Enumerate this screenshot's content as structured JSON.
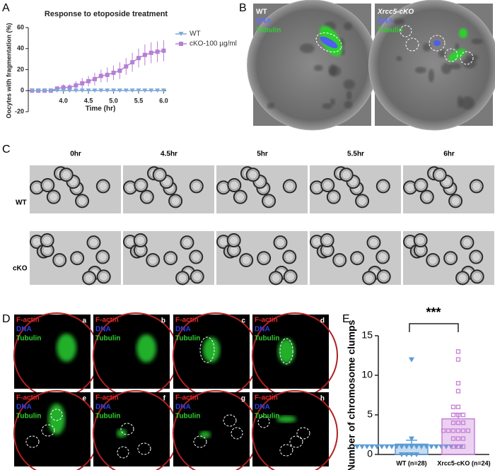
{
  "panel_labels": [
    "A",
    "B",
    "C",
    "D",
    "E"
  ],
  "chart_data": [
    {
      "type": "line",
      "title": "Response to etoposide treatment",
      "xlabel": "Time (hr)",
      "ylabel": "Oocytes with fragmentation (%)",
      "x": [
        3.375,
        3.5,
        3.625,
        3.75,
        3.875,
        4.0,
        4.125,
        4.25,
        4.375,
        4.5,
        4.625,
        4.75,
        4.875,
        5.0,
        5.125,
        5.25,
        5.375,
        5.5,
        5.625,
        5.75,
        5.875,
        6.0
      ],
      "series": [
        {
          "name": "WT",
          "color": "#7fa9d8",
          "marker": "triangle",
          "values": [
            0,
            0,
            0,
            0,
            0,
            0,
            0,
            0,
            0,
            0,
            0,
            0,
            0,
            0,
            0,
            0,
            0,
            0,
            0,
            0,
            0,
            0
          ]
        },
        {
          "name": "cKO-100 µg/ml",
          "color": "#b77fd4",
          "marker": "square",
          "values": [
            0,
            0,
            0,
            0,
            2,
            3,
            3,
            5,
            7,
            9,
            11,
            14,
            15,
            17,
            19,
            23,
            27,
            31,
            34,
            36,
            37,
            38
          ],
          "errors": [
            0,
            0,
            0,
            0,
            2,
            3,
            3,
            4,
            5,
            5,
            6,
            6,
            7,
            7,
            8,
            8,
            9,
            9,
            10,
            10,
            10,
            10
          ]
        }
      ],
      "xlim": [
        3.3,
        6.05
      ],
      "xticks": [
        {
          "value": 4,
          "label": "4.0"
        },
        4.5,
        {
          "value": 5,
          "label": "5.0"
        },
        5.5,
        {
          "value": 6,
          "label": "6.0"
        }
      ],
      "ylim": [
        -20,
        60
      ],
      "yticks": [
        -20,
        0,
        20,
        40,
        60
      ],
      "legend": "right"
    },
    {
      "type": "bar",
      "ylabel": "Number of chromosome clumps",
      "categories": [
        "WT (n=28)",
        "Xrcc5-cKO (n=24)"
      ],
      "values": [
        1.3,
        4.5
      ],
      "errors": [
        0.5,
        0.7
      ],
      "colors": [
        "#5b9bd5",
        "#c77fd8"
      ],
      "points": [
        [
          12,
          2,
          1,
          1,
          1,
          1,
          1,
          1,
          1,
          1,
          1,
          1,
          1,
          1,
          1,
          1,
          1,
          1,
          1,
          1,
          1,
          1,
          1,
          1,
          0,
          0,
          0,
          0
        ],
        [
          13,
          12,
          9,
          8,
          6,
          6,
          5,
          5,
          5,
          4,
          4,
          4,
          3,
          3,
          3,
          3,
          3,
          3,
          2,
          2,
          2,
          1,
          1,
          1
        ]
      ],
      "significance": "***",
      "ylim": [
        0,
        15
      ],
      "yticks": [
        0,
        5,
        10,
        15
      ]
    }
  ],
  "panel_b": {
    "images": [
      "WT",
      "Xrcc5-cKO"
    ],
    "channels": [
      "DNA",
      "Tubulin"
    ]
  },
  "panel_c": {
    "times": [
      "0hr",
      "4.5hr",
      "5hr",
      "5.5hr",
      "6hr"
    ],
    "rows": [
      "WT",
      "cKO"
    ]
  },
  "panel_d": {
    "channels": [
      "F-actin",
      "DNA",
      "Tubulin"
    ],
    "images": [
      "a",
      "b",
      "c",
      "d",
      "e",
      "f",
      "g",
      "h"
    ]
  }
}
